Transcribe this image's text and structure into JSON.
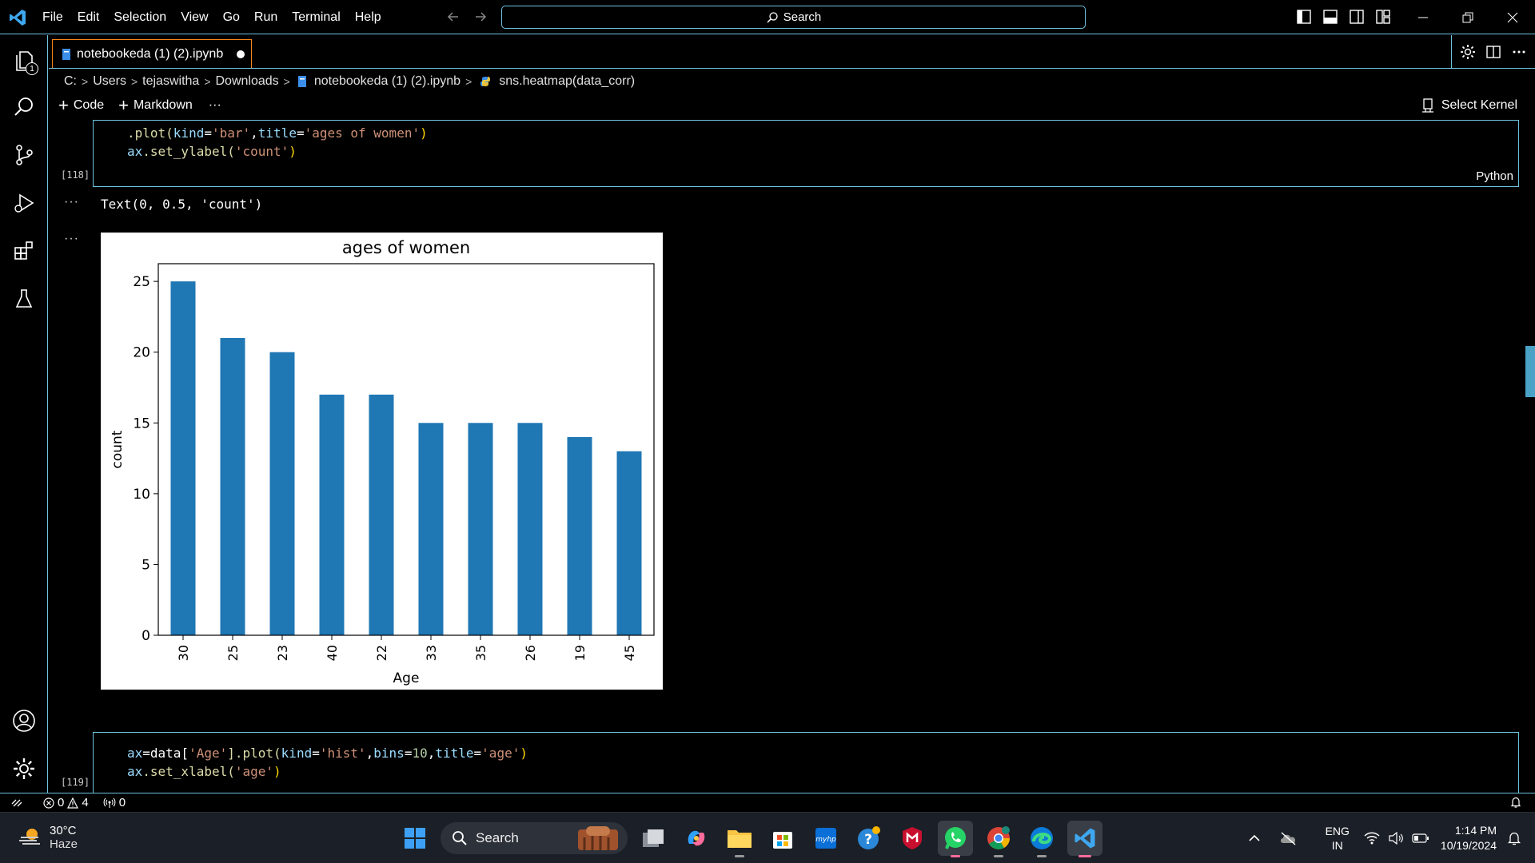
{
  "titlebar": {
    "menu": [
      "File",
      "Edit",
      "Selection",
      "View",
      "Go",
      "Run",
      "Terminal",
      "Help"
    ],
    "search_label": "Search"
  },
  "activity": {
    "explorer_badge": "1"
  },
  "tab": {
    "title": "notebookeda (1) (2).ipynb"
  },
  "breadcrumb": {
    "drive": "C:",
    "users": "Users",
    "user": "tejaswitha",
    "folder": "Downloads",
    "file": "notebookeda (1) (2).ipynb",
    "symbol": "sns.heatmap(data_corr)"
  },
  "toolbar": {
    "code_label": "Code",
    "markdown_label": "Markdown",
    "more_label": "···",
    "kernel_label": "Select Kernel"
  },
  "cell118": {
    "exec_count": "[118]",
    "language": "Python",
    "line1_pre": ".plot(",
    "line1_kw": "kind",
    "line1_eq": "=",
    "line1_s1": "'bar'",
    "line1_comma": ",",
    "line1_kw2": "title",
    "line1_eq2": "=",
    "line1_s2": "'ages of women'",
    "line1_close": ")",
    "line2_obj": "ax",
    "line2_fn": ".set_ylabel(",
    "line2_str": "'count'",
    "line2_close": ")"
  },
  "output": {
    "text": "Text(0, 0.5, 'count')",
    "ellipsis": "···"
  },
  "cell119": {
    "exec_count": "[119]",
    "line1_a": "ax",
    "line1_b": "=data[",
    "line1_s1": "'Age'",
    "line1_c": "].plot(",
    "line1_kw": "kind",
    "line1_d": "=",
    "line1_s2": "'hist'",
    "line1_e": ",",
    "line1_kw2": "bins",
    "line1_f": "=",
    "line1_n": "10",
    "line1_g": ",",
    "line1_kw3": "title",
    "line1_h": "=",
    "line1_s3": "'age'",
    "line1_i": ")",
    "line2_a": "ax",
    "line2_b": ".set_xlabel(",
    "line2_s": "'age'",
    "line2_c": ")"
  },
  "chart_data": {
    "type": "bar",
    "title": "ages of women",
    "xlabel": "Age",
    "ylabel": "count",
    "categories": [
      "30",
      "25",
      "23",
      "40",
      "22",
      "33",
      "35",
      "26",
      "19",
      "45"
    ],
    "values": [
      25,
      21,
      20,
      17,
      17,
      15,
      15,
      15,
      14,
      13
    ],
    "ylim": [
      0,
      26.25
    ],
    "yticks": [
      0,
      5,
      10,
      15,
      20,
      25
    ],
    "color": "#1f77b4",
    "grid": false
  },
  "statusbar": {
    "errors": "0",
    "warnings": "4",
    "ports": "0"
  },
  "taskbar": {
    "temp": "30°C",
    "condition": "Haze",
    "search": "Search",
    "lang1": "ENG",
    "lang2": "IN",
    "time": "1:14 PM",
    "date": "10/19/2024"
  },
  "colors": {
    "accent": "#6fc3df",
    "tab_border": "#f38518",
    "bar": "#1f77b4"
  }
}
